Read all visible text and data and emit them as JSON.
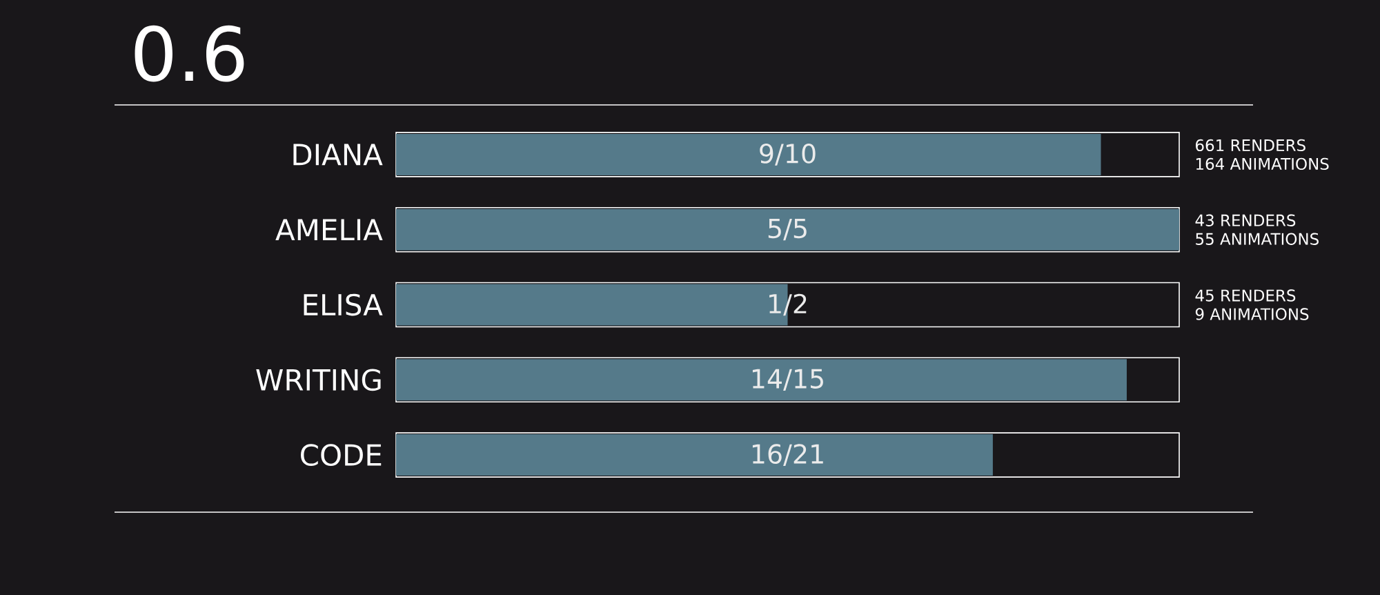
{
  "chart_data": {
    "type": "bar",
    "orientation": "horizontal",
    "xlim": [
      0,
      1
    ],
    "title": "0.6",
    "categories": [
      "DIANA",
      "AMELIA",
      "ELISA",
      "WRITING",
      "CODE"
    ],
    "values": [
      0.9,
      1,
      0.5,
      0.933,
      0.762
    ],
    "value_labels": [
      "9/10",
      "5/5",
      "1/2",
      "14/15",
      "16/21"
    ],
    "color": "#557a8a",
    "annotations": [
      "661 RENDERS",
      "164 ANIMATIONS",
      "43 RENDERS",
      "55 ANIMATIONS",
      "45 RENDERS",
      "9 ANIMATIONS"
    ]
  }
}
